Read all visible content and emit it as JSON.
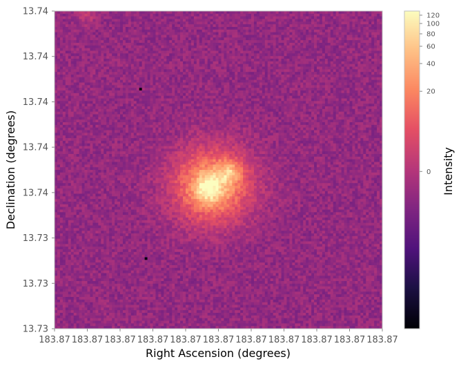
{
  "chart_data": {
    "type": "heatmap",
    "title": "",
    "xlabel": "Right Ascension (degrees)",
    "ylabel": "Declination (degrees)",
    "x_tick_labels": [
      "183.87",
      "183.87",
      "183.87",
      "183.87",
      "183.87",
      "183.87",
      "183.87",
      "183.87",
      "183.87",
      "183.87",
      "183.87"
    ],
    "y_tick_labels": [
      "13.74",
      "13.74",
      "13.74",
      "13.74",
      "13.74",
      "13.73",
      "13.73",
      "13.73"
    ],
    "colorbar": {
      "label": "Intensity",
      "colormap": "magma",
      "scale": "nonlinear",
      "ticks": [
        {
          "value": 120,
          "label": "120"
        },
        {
          "value": 100,
          "label": "100"
        },
        {
          "value": 80,
          "label": "80"
        },
        {
          "value": 60,
          "label": "60"
        },
        {
          "value": 40,
          "label": "40"
        },
        {
          "value": 20,
          "label": "20"
        },
        {
          "value": 0,
          "label": "0"
        }
      ]
    },
    "grid": false,
    "image": {
      "grid_size": 120,
      "background_level": 0.42,
      "noise_amplitude": 0.06,
      "sources": [
        {
          "x": 0.48,
          "y": 0.55,
          "peak": 0.42,
          "sigma": 0.085
        },
        {
          "x": 0.47,
          "y": 0.56,
          "peak": 0.22,
          "sigma": 0.03
        },
        {
          "x": 0.535,
          "y": 0.505,
          "peak": 0.2,
          "sigma": 0.025
        },
        {
          "x": 0.1,
          "y": 0.01,
          "peak": 0.1,
          "sigma": 0.025
        }
      ],
      "dead_pixels": [
        {
          "x": 0.265,
          "y": 0.245
        },
        {
          "x": 0.275,
          "y": 0.78
        }
      ]
    }
  }
}
